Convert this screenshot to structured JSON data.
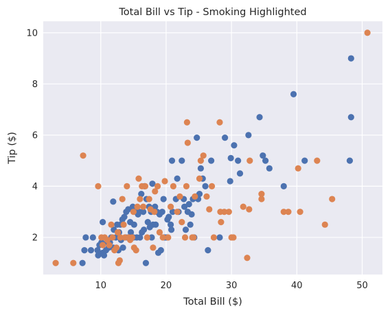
{
  "chart_data": {
    "type": "scatter",
    "title": "Total Bill vs Tip - Smoking Highlighted",
    "xlabel": "Total Bill ($)",
    "ylabel": "Tip ($)",
    "xlim": [
      1.2,
      53.1
    ],
    "ylim": [
      0.55,
      10.45
    ],
    "xticks": [
      10,
      20,
      30,
      40,
      50
    ],
    "yticks": [
      2,
      4,
      6,
      8,
      10
    ],
    "grid": true,
    "background": "#eaeaf2",
    "series": [
      {
        "color": "#4c72b0",
        "points": [
          [
            7.2,
            1.0
          ],
          [
            7.5,
            1.5
          ],
          [
            7.7,
            2.0
          ],
          [
            8.5,
            1.5
          ],
          [
            8.8,
            2.0
          ],
          [
            9.5,
            1.5
          ],
          [
            9.6,
            1.3
          ],
          [
            9.8,
            1.7
          ],
          [
            10.1,
            1.8
          ],
          [
            10.3,
            1.4
          ],
          [
            10.3,
            2.6
          ],
          [
            10.5,
            1.3
          ],
          [
            10.8,
            1.5
          ],
          [
            11.0,
            1.8
          ],
          [
            11.2,
            1.6
          ],
          [
            11.4,
            1.8
          ],
          [
            11.6,
            2.0
          ],
          [
            11.9,
            1.6
          ],
          [
            11.9,
            3.4
          ],
          [
            12.0,
            2.3
          ],
          [
            12.3,
            2.0
          ],
          [
            12.5,
            2.5
          ],
          [
            12.7,
            1.5
          ],
          [
            12.8,
            2.2
          ],
          [
            13.0,
            2.5
          ],
          [
            13.1,
            1.9
          ],
          [
            13.3,
            2.7
          ],
          [
            13.4,
            1.6
          ],
          [
            13.6,
            2.8
          ],
          [
            13.8,
            2.0
          ],
          [
            13.9,
            3.0
          ],
          [
            14.2,
            2.0
          ],
          [
            14.2,
            3.1
          ],
          [
            14.5,
            2.6
          ],
          [
            14.6,
            2.2
          ],
          [
            14.9,
            3.2
          ],
          [
            15.0,
            2.0
          ],
          [
            15.1,
            2.5
          ],
          [
            15.4,
            3.0
          ],
          [
            15.5,
            2.0
          ],
          [
            15.7,
            2.9
          ],
          [
            15.9,
            3.0
          ],
          [
            16.0,
            2.0
          ],
          [
            16.2,
            3.7
          ],
          [
            16.3,
            2.2
          ],
          [
            16.5,
            3.0
          ],
          [
            16.6,
            2.3
          ],
          [
            16.7,
            4.0
          ],
          [
            16.9,
            1.0
          ],
          [
            17.0,
            3.5
          ],
          [
            17.2,
            2.6
          ],
          [
            17.4,
            3.2
          ],
          [
            17.5,
            2.4
          ],
          [
            17.7,
            3.0
          ],
          [
            17.8,
            2.0
          ],
          [
            17.9,
            4.1
          ],
          [
            18.0,
            2.5
          ],
          [
            18.3,
            3.2
          ],
          [
            18.4,
            2.5
          ],
          [
            18.6,
            3.0
          ],
          [
            18.8,
            1.4
          ],
          [
            19.0,
            2.9
          ],
          [
            19.2,
            1.5
          ],
          [
            19.4,
            3.0
          ],
          [
            19.6,
            3.5
          ],
          [
            19.8,
            2.0
          ],
          [
            20.1,
            2.0
          ],
          [
            20.2,
            2.7
          ],
          [
            20.4,
            2.8
          ],
          [
            20.7,
            2.5
          ],
          [
            20.8,
            2.3
          ],
          [
            20.9,
            5.0
          ],
          [
            21.0,
            3.0
          ],
          [
            21.5,
            3.5
          ],
          [
            21.7,
            4.3
          ],
          [
            21.9,
            3.0
          ],
          [
            22.4,
            5.0
          ],
          [
            22.7,
            3.5
          ],
          [
            22.8,
            3.2
          ],
          [
            23.0,
            2.3
          ],
          [
            23.3,
            3.0
          ],
          [
            23.5,
            3.3
          ],
          [
            23.7,
            2.5
          ],
          [
            23.9,
            2.9
          ],
          [
            24.1,
            3.5
          ],
          [
            24.3,
            2.0
          ],
          [
            24.5,
            3.6
          ],
          [
            24.7,
            5.9
          ],
          [
            24.9,
            3.5
          ],
          [
            25.1,
            3.7
          ],
          [
            25.3,
            4.7
          ],
          [
            25.6,
            4.3
          ],
          [
            26.0,
            4.0
          ],
          [
            26.4,
            1.5
          ],
          [
            26.9,
            5.0
          ],
          [
            28.2,
            2.0
          ],
          [
            29.0,
            5.9
          ],
          [
            29.8,
            4.2
          ],
          [
            29.9,
            5.1
          ],
          [
            30.4,
            5.6
          ],
          [
            31.0,
            5.0
          ],
          [
            31.3,
            4.5
          ],
          [
            32.6,
            6.0
          ],
          [
            34.3,
            6.7
          ],
          [
            34.8,
            5.2
          ],
          [
            35.2,
            5.0
          ],
          [
            35.8,
            4.7
          ],
          [
            38.0,
            4.0
          ],
          [
            39.5,
            7.6
          ],
          [
            41.2,
            5.0
          ],
          [
            48.1,
            5.0
          ],
          [
            48.3,
            6.7
          ],
          [
            48.3,
            9.0
          ]
        ]
      },
      {
        "color": "#dd8452",
        "points": [
          [
            3.1,
            1.0
          ],
          [
            5.8,
            1.0
          ],
          [
            7.3,
            5.2
          ],
          [
            9.6,
            4.0
          ],
          [
            10.1,
            2.0
          ],
          [
            10.3,
            1.7
          ],
          [
            10.6,
            2.0
          ],
          [
            11.0,
            1.9
          ],
          [
            11.3,
            1.7
          ],
          [
            11.6,
            2.5
          ],
          [
            11.8,
            2.0
          ],
          [
            12.1,
            1.5
          ],
          [
            12.4,
            1.6
          ],
          [
            12.6,
            2.2
          ],
          [
            12.7,
            1.0
          ],
          [
            12.9,
            1.1
          ],
          [
            13.0,
            2.0
          ],
          [
            13.3,
            3.5
          ],
          [
            13.5,
            2.5
          ],
          [
            13.7,
            2.0
          ],
          [
            14.0,
            4.0
          ],
          [
            14.3,
            2.0
          ],
          [
            14.5,
            1.9
          ],
          [
            14.8,
            2.0
          ],
          [
            15.0,
            3.0
          ],
          [
            15.1,
            1.6
          ],
          [
            15.4,
            1.5
          ],
          [
            15.6,
            3.2
          ],
          [
            15.8,
            4.3
          ],
          [
            16.0,
            3.5
          ],
          [
            16.3,
            4.0
          ],
          [
            16.5,
            3.2
          ],
          [
            16.8,
            4.0
          ],
          [
            17.1,
            2.0
          ],
          [
            17.4,
            3.5
          ],
          [
            17.6,
            3.1
          ],
          [
            18.0,
            1.6
          ],
          [
            18.2,
            3.0
          ],
          [
            18.3,
            3.8
          ],
          [
            18.7,
            4.0
          ],
          [
            19.0,
            2.2
          ],
          [
            19.5,
            2.0
          ],
          [
            19.8,
            4.2
          ],
          [
            20.3,
            2.0
          ],
          [
            20.7,
            3.2
          ],
          [
            21.1,
            4.0
          ],
          [
            21.7,
            3.0
          ],
          [
            22.1,
            3.6
          ],
          [
            22.4,
            2.6
          ],
          [
            22.9,
            2.0
          ],
          [
            23.2,
            6.5
          ],
          [
            23.3,
            5.7
          ],
          [
            23.1,
            4.0
          ],
          [
            24.0,
            2.0
          ],
          [
            24.2,
            2.0
          ],
          [
            24.4,
            3.6
          ],
          [
            25.1,
            4.3
          ],
          [
            25.3,
            5.0
          ],
          [
            25.7,
            5.2
          ],
          [
            26.2,
            3.6
          ],
          [
            26.6,
            3.1
          ],
          [
            27.0,
            4.0
          ],
          [
            27.3,
            2.0
          ],
          [
            28.2,
            6.5
          ],
          [
            28.3,
            3.0
          ],
          [
            28.4,
            2.6
          ],
          [
            28.9,
            3.0
          ],
          [
            29.6,
            3.0
          ],
          [
            30.0,
            2.0
          ],
          [
            30.3,
            2.0
          ],
          [
            31.8,
            3.2
          ],
          [
            32.4,
            1.2
          ],
          [
            32.7,
            3.1
          ],
          [
            32.8,
            5.0
          ],
          [
            34.6,
            3.5
          ],
          [
            34.6,
            3.7
          ],
          [
            38.0,
            3.0
          ],
          [
            38.7,
            3.0
          ],
          [
            40.2,
            4.7
          ],
          [
            40.5,
            3.0
          ],
          [
            43.1,
            5.0
          ],
          [
            44.3,
            2.5
          ],
          [
            45.4,
            3.5
          ],
          [
            50.8,
            10.0
          ]
        ]
      }
    ]
  }
}
